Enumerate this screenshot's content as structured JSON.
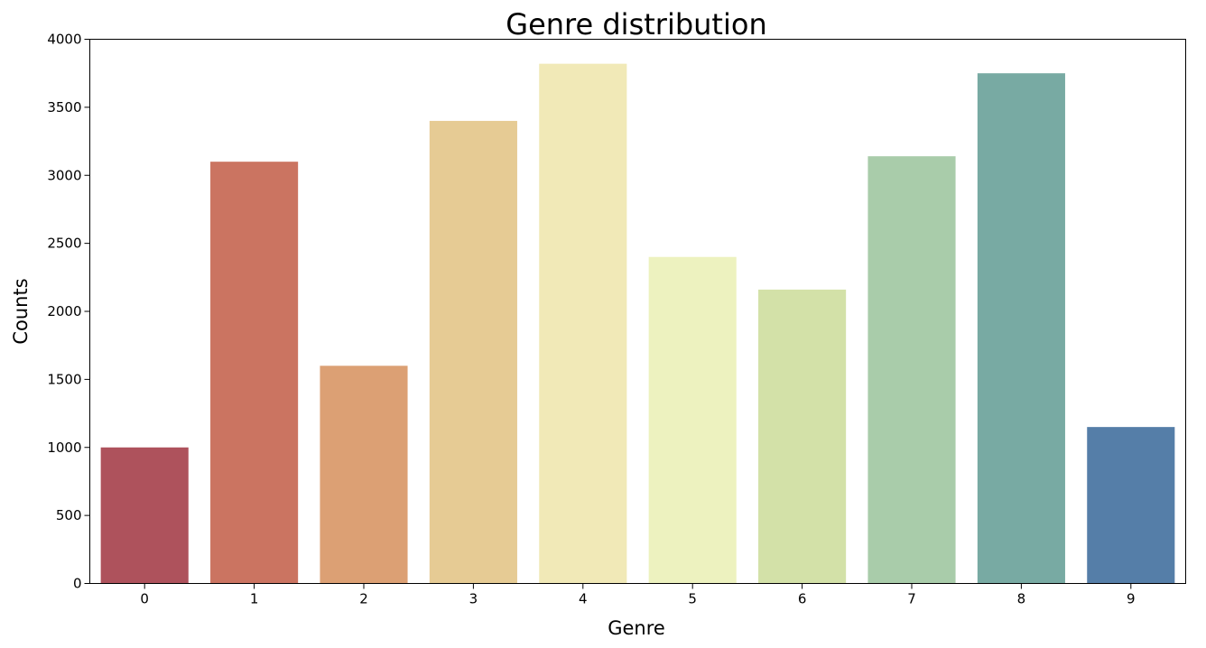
{
  "chart_data": {
    "type": "bar",
    "title": "Genre distribution",
    "xlabel": "Genre",
    "ylabel": "Counts",
    "categories": [
      "0",
      "1",
      "2",
      "3",
      "4",
      "5",
      "6",
      "7",
      "8",
      "9"
    ],
    "values": [
      1000,
      3100,
      1600,
      3400,
      3820,
      2400,
      2160,
      3140,
      3750,
      1150
    ],
    "colors": [
      "#ae525c",
      "#cb7461",
      "#dca074",
      "#e6cb94",
      "#f1e9b7",
      "#edf2bf",
      "#d3e1a8",
      "#a9ccaa",
      "#78aaa3",
      "#557ea8"
    ],
    "ylim": [
      0,
      4000
    ],
    "yticks": [
      0,
      500,
      1000,
      1500,
      2000,
      2500,
      3000,
      3500,
      4000
    ],
    "grid": false,
    "legend": "none"
  }
}
